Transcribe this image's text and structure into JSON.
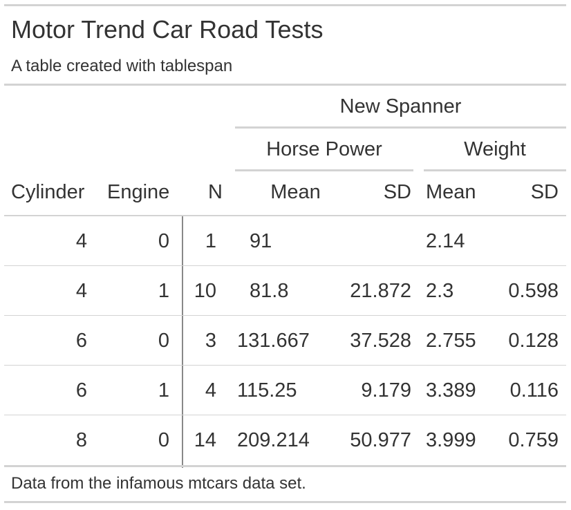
{
  "table": {
    "title": "Motor Trend Car Road Tests",
    "subtitle": "A table created with tablespan",
    "spanners": {
      "top": "New Spanner",
      "hp": "Horse Power",
      "wt": "Weight"
    },
    "columns": [
      "Cylinder",
      "Engine",
      "N",
      "Mean",
      "SD",
      "Mean",
      "SD"
    ],
    "rows": [
      [
        "4",
        "0",
        "1",
        "91",
        "",
        "2.14",
        ""
      ],
      [
        "4",
        "1",
        "10",
        "81.8",
        "21.872",
        "2.3",
        "0.598"
      ],
      [
        "6",
        "0",
        "3",
        "131.667",
        "37.528",
        "2.755",
        "0.128"
      ],
      [
        "6",
        "1",
        "4",
        "115.25",
        "9.179",
        "3.389",
        "0.116"
      ],
      [
        "8",
        "0",
        "14",
        "209.214",
        "50.977",
        "3.999",
        "0.759"
      ]
    ],
    "footnote": "Data from the infamous mtcars data set."
  }
}
